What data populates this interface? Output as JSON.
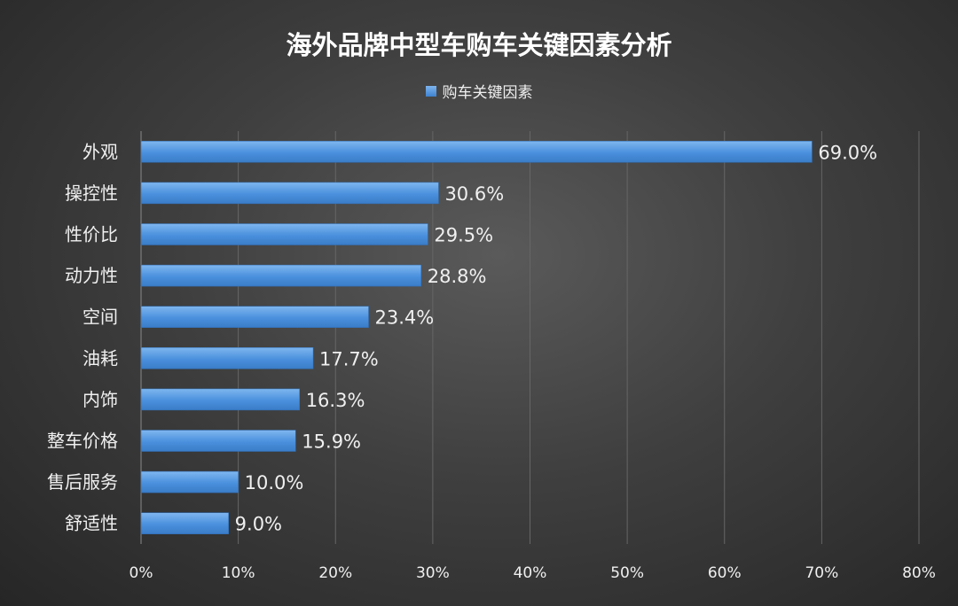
{
  "colors": {
    "bar": "#4a90dd",
    "bar_edge": "#2f6fb8",
    "text": "#f0f0f0",
    "grid": "#666666"
  },
  "chart_data": {
    "type": "bar",
    "orientation": "horizontal",
    "title": "海外品牌中型车购车关键因素分析",
    "categories": [
      "外观",
      "操控性",
      "性价比",
      "动力性",
      "空间",
      "油耗",
      "内饰",
      "整车价格",
      "售后服务",
      "舒适性"
    ],
    "series": [
      {
        "name": "购车关键因素",
        "values": [
          69.0,
          30.6,
          29.5,
          28.8,
          23.4,
          17.7,
          16.3,
          15.9,
          10.0,
          9.0
        ],
        "labels": [
          "69.0%",
          "30.6%",
          "29.5%",
          "28.8%",
          "23.4%",
          "17.7%",
          "16.3%",
          "15.9%",
          "10.0%",
          "9.0%"
        ]
      }
    ],
    "xlim": [
      0,
      80
    ],
    "x_ticks": [
      "0%",
      "10%",
      "20%",
      "30%",
      "40%",
      "50%",
      "60%",
      "70%",
      "80%"
    ],
    "grid": true,
    "legend_position": "top"
  }
}
